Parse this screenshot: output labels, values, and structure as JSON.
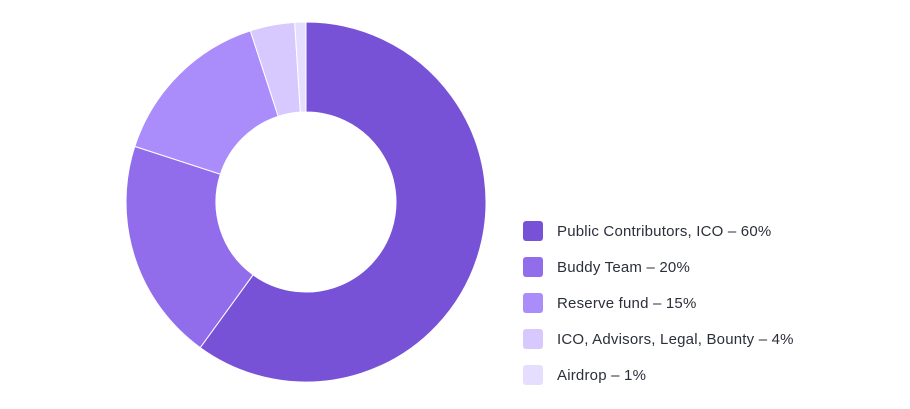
{
  "chart_data": {
    "type": "pie",
    "variant": "donut",
    "title": "",
    "legend_position": "right",
    "slices": [
      {
        "label": "Public Contributors, ICO – 60%",
        "name": "Public Contributors, ICO",
        "value": 60,
        "color": "#7752d6"
      },
      {
        "label": "Buddy Team – 20%",
        "name": "Buddy Team",
        "value": 20,
        "color": "#916deb"
      },
      {
        "label": "Reserve fund – 15%",
        "name": "Reserve fund",
        "value": 15,
        "color": "#aa8cfb"
      },
      {
        "label": "ICO, Advisors, Legal, Bounty – 4%",
        "name": "ICO, Advisors, Legal, Bounty",
        "value": 4,
        "color": "#d7c9fd"
      },
      {
        "label": "Airdrop – 1%",
        "name": "Airdrop",
        "value": 1,
        "color": "#e6defe"
      }
    ]
  }
}
